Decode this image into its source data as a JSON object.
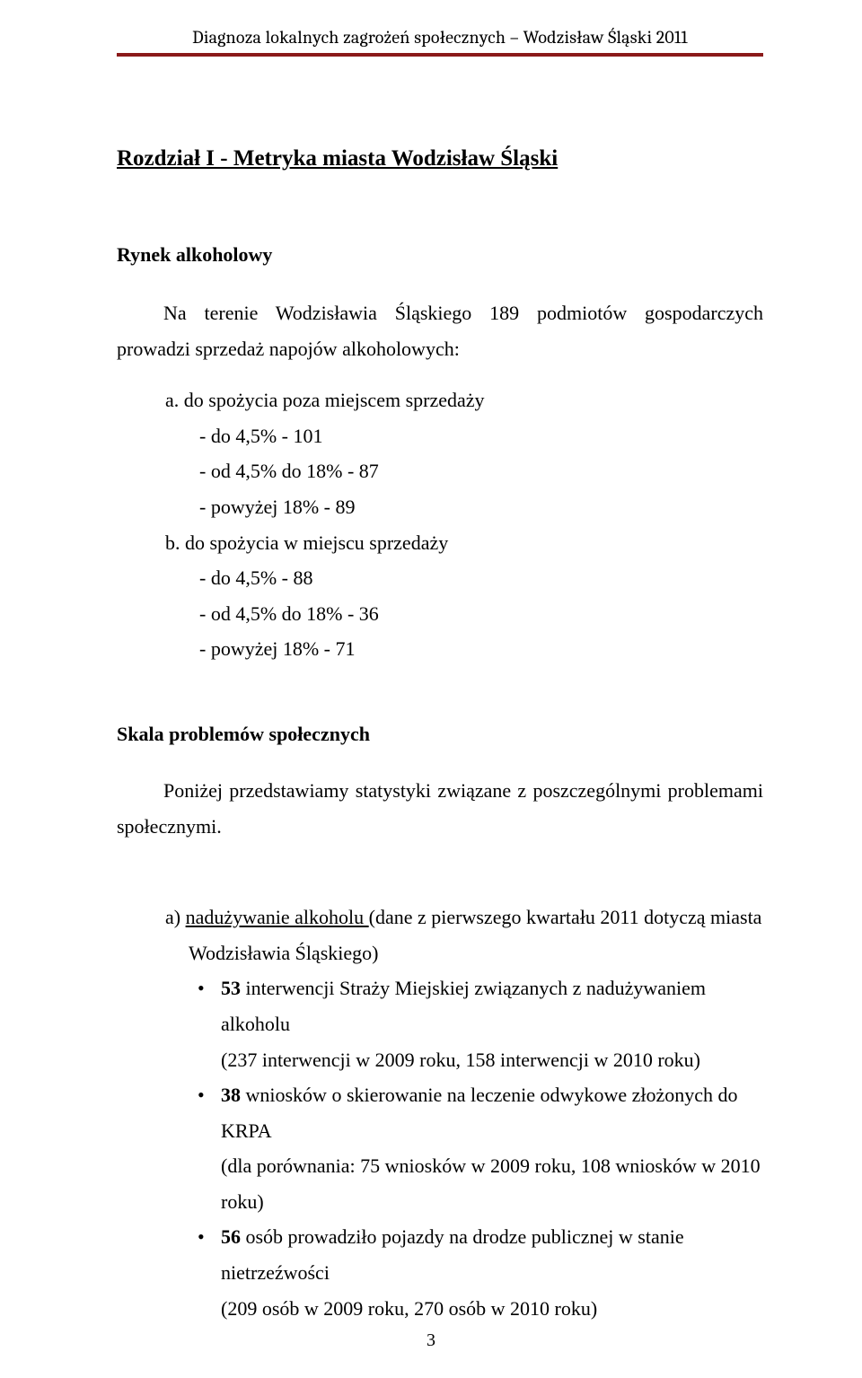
{
  "header": {
    "running_title": "Diagnoza lokalnych zagrożeń społecznych – Wodzisław Śląski 2011",
    "rule_top_color": "#8b1a1a",
    "rule_bottom_color": "#8b1a1a"
  },
  "chapter_title": "Rozdział I - Metryka miasta Wodzisław Śląski",
  "section1": {
    "heading": "Rynek alkoholowy",
    "lead": "Na terenie Wodzisławia Śląskiego 189 podmiotów gospodarczych prowadzi sprzedaż napojów alkoholowych:",
    "items": [
      {
        "label": "a.",
        "text": "do spożycia poza miejscem sprzedaży",
        "subs": [
          "- do 4,5% - 101",
          "- od 4,5% do 18% - 87",
          "- powyżej 18% - 89"
        ]
      },
      {
        "label": "b.",
        "text": "do spożycia w miejscu sprzedaży",
        "subs": [
          "- do 4,5% - 88",
          "- od 4,5% do 18% - 36",
          "- powyżej 18% - 71"
        ]
      }
    ]
  },
  "section2": {
    "heading": "Skala problemów społecznych",
    "para": "Poniżej przedstawiamy statystyki związane z poszczególnymi problemami społecznymi.",
    "sub_a": {
      "label": "a)",
      "title_underlined": "nadużywanie alkoholu ",
      "title_rest": "(dane z pierwszego kwartału 2011 dotyczą miasta",
      "cont": "Wodzisławia Śląskiego)",
      "bullets": [
        {
          "bold": "53",
          "rest": " interwencji Straży Miejskiej związanych z nadużywaniem alkoholu",
          "paren": "(237 interwencji w 2009 roku, 158 interwencji w 2010 roku)"
        },
        {
          "bold": "38",
          "rest": " wniosków o skierowanie na leczenie odwykowe złożonych do KRPA",
          "paren": "(dla porównania: 75 wniosków w 2009 roku, 108 wniosków w 2010 roku)"
        },
        {
          "bold": "56",
          "rest": " osób prowadziło pojazdy na drodze publicznej w stanie nietrzeźwości",
          "paren": "(209 osób w 2009 roku, 270 osób w 2010 roku)"
        }
      ]
    }
  },
  "page_number": "3"
}
